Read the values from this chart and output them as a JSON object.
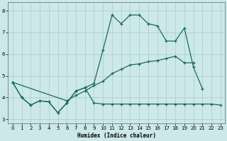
{
  "xlabel": "Humidex (Indice chaleur)",
  "x_values": [
    0,
    1,
    2,
    3,
    4,
    5,
    6,
    7,
    8,
    9,
    10,
    11,
    12,
    13,
    14,
    15,
    16,
    17,
    18,
    19,
    20,
    21,
    22,
    23
  ],
  "line1": [
    4.7,
    4.0,
    3.65,
    3.85,
    3.8,
    3.3,
    3.75,
    4.3,
    4.45,
    4.65,
    6.2,
    7.8,
    7.4,
    7.8,
    7.8,
    7.4,
    7.3,
    6.6,
    6.6,
    7.2,
    5.4,
    4.4,
    null,
    null
  ],
  "line2": [
    4.7,
    4.0,
    3.65,
    3.85,
    3.8,
    3.3,
    3.75,
    4.3,
    4.45,
    3.75,
    3.7,
    3.7,
    3.7,
    3.7,
    3.7,
    3.7,
    3.7,
    3.7,
    3.7,
    3.7,
    3.7,
    3.7,
    3.7,
    3.65
  ],
  "line3": [
    4.7,
    null,
    null,
    null,
    null,
    null,
    3.85,
    4.1,
    4.3,
    4.55,
    4.75,
    5.1,
    5.3,
    5.5,
    5.55,
    5.65,
    5.7,
    5.8,
    5.9,
    5.6,
    5.6,
    null,
    null,
    null
  ],
  "ylim": [
    2.8,
    8.4
  ],
  "xlim": [
    -0.5,
    23.5
  ],
  "yticks": [
    3,
    4,
    5,
    6,
    7,
    8
  ],
  "xticks": [
    0,
    1,
    2,
    3,
    4,
    5,
    6,
    7,
    8,
    9,
    10,
    11,
    12,
    13,
    14,
    15,
    16,
    17,
    18,
    19,
    20,
    21,
    22,
    23
  ],
  "line_color": "#1a6b5a",
  "bg_color": "#cce8e8",
  "grid_color": "#a8cccc",
  "fig_bg": "#cce8e8"
}
